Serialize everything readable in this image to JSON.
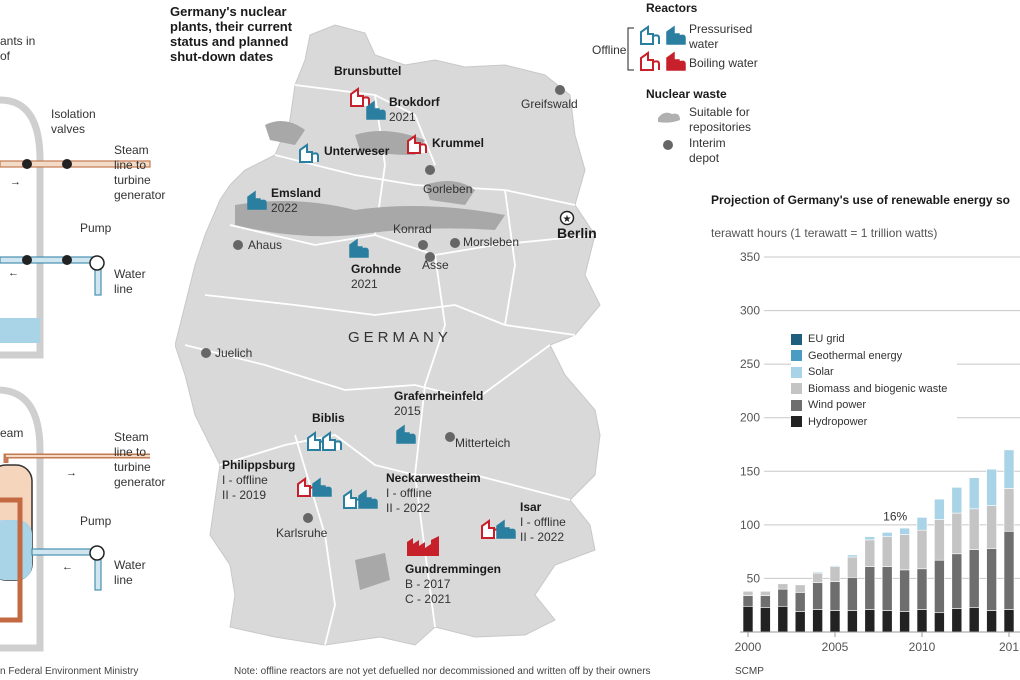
{
  "left_panel": {
    "header_text": [
      "ants in",
      "of"
    ],
    "isolation_valves": [
      "Isolation",
      "valves"
    ],
    "steam_line_top": [
      "Steam",
      "line to",
      "turbine",
      "generator"
    ],
    "pump_top": "Pump",
    "water_line_top": [
      "Water",
      "line"
    ],
    "steam_label_bottom": "eam",
    "steam_line_bottom": [
      "Steam",
      "line to",
      "turbine",
      "generator"
    ],
    "pump_bottom": "Pump",
    "water_line_bottom": [
      "Water",
      "line"
    ],
    "source": "n Federal Environment Ministry"
  },
  "map": {
    "title": [
      "Germany's nuclear",
      "plants, their current",
      "status and planned",
      "shut-down dates"
    ],
    "country_label": "GERMANY",
    "capital": "Berlin",
    "plants": [
      {
        "id": "brunsbuttel",
        "name": "Brunsbuttel",
        "detail": [],
        "type": "boiling",
        "status": "offline"
      },
      {
        "id": "brokdorf",
        "name": "Brokdorf",
        "detail": [
          "2021"
        ],
        "type": "pressurised",
        "status": "active"
      },
      {
        "id": "unterweser",
        "name": "Unterweser",
        "detail": [],
        "type": "pressurised",
        "status": "offline"
      },
      {
        "id": "krummel",
        "name": "Krummel",
        "detail": [],
        "type": "boiling",
        "status": "offline"
      },
      {
        "id": "emsland",
        "name": "Emsland",
        "detail": [
          "2022"
        ],
        "type": "pressurised",
        "status": "active"
      },
      {
        "id": "grohnde",
        "name": "Grohnde",
        "detail": [
          "2021"
        ],
        "type": "pressurised",
        "status": "active"
      },
      {
        "id": "grafenrheinfeld",
        "name": "Grafenrheinfeld",
        "detail": [
          "2015"
        ],
        "type": "pressurised",
        "status": "active"
      },
      {
        "id": "biblis",
        "name": "Biblis",
        "detail": [],
        "type": "pressurised",
        "status": "offline"
      },
      {
        "id": "philippsburg",
        "name": "Philippsburg",
        "detail": [
          "I - offline",
          "II - 2019"
        ],
        "type": "mixed",
        "status": "mixed"
      },
      {
        "id": "neckarwestheim",
        "name": "Neckarwestheim",
        "detail": [
          "I - offline",
          "II - 2022"
        ],
        "type": "pressurised",
        "status": "mixed"
      },
      {
        "id": "isar",
        "name": "Isar",
        "detail": [
          "I - offline",
          "II - 2022"
        ],
        "type": "mixed",
        "status": "mixed"
      },
      {
        "id": "gundremmingen",
        "name": "Gundremmingen",
        "detail": [
          "B - 2017",
          "C - 2021"
        ],
        "type": "boiling",
        "status": "active"
      }
    ],
    "depots": [
      "Greifswald",
      "Gorleben",
      "Konrad",
      "Asse",
      "Morsleben",
      "Ahaus",
      "Juelich",
      "Mitterteich",
      "Karlsruhe"
    ],
    "note": "Note: offline reactors are not yet defuelled nor decommissioned and written off by their owners"
  },
  "legend": {
    "reactors_title": "Reactors",
    "offline": "Offline",
    "pressurised": [
      "Pressurised",
      "water"
    ],
    "boiling": "Boiling water",
    "nuclear_waste_title": "Nuclear waste",
    "repositories": [
      "Suitable for",
      "repositories"
    ],
    "depot": [
      "Interim",
      "depot"
    ]
  },
  "colors": {
    "pressurised": "#2a7fa0",
    "boiling": "#c8202a",
    "map_fill": "#d9d9d9",
    "map_border": "#ffffff",
    "depot": "#666666",
    "repository": "#b0b0b0"
  },
  "chart_data": {
    "type": "bar",
    "stacked": true,
    "title": "Projection of Germany's use of renewable energy so",
    "ylabel": "terawatt hours (1 terawatt = 1 trillion watts)",
    "ylim": [
      0,
      350
    ],
    "yticks": [
      "350",
      "300",
      "250",
      "200",
      "150",
      "100",
      "50"
    ],
    "xticks": [
      "2000",
      "2005",
      "2010",
      "201"
    ],
    "x": [
      2000,
      2001,
      2002,
      2003,
      2004,
      2005,
      2006,
      2007,
      2008,
      2009,
      2010,
      2011,
      2012,
      2013,
      2014,
      2015
    ],
    "annotation": {
      "text": "16%",
      "x": 2008
    },
    "legend_placement": "upper-left",
    "series": [
      {
        "name": "Hydropower",
        "color": "#222222",
        "values": [
          24,
          23,
          24,
          19,
          21,
          20,
          20,
          21,
          20,
          19,
          21,
          18,
          22,
          23,
          20,
          21
        ]
      },
      {
        "name": "Wind power",
        "color": "#6e6e6e",
        "values": [
          10,
          11,
          16,
          18,
          25,
          27,
          31,
          40,
          41,
          39,
          38,
          49,
          51,
          54,
          58,
          73
        ]
      },
      {
        "name": "Biomass and biogenic waste",
        "color": "#c4c4c4",
        "values": [
          4,
          4,
          5,
          7,
          9,
          14,
          19,
          25,
          28,
          33,
          36,
          38,
          38,
          38,
          40,
          40
        ]
      },
      {
        "name": "Solar",
        "color": "#a9d3e6",
        "values": [
          0,
          0,
          0,
          0,
          1,
          1,
          2,
          3,
          4,
          6,
          12,
          19,
          24,
          29,
          34,
          36
        ]
      },
      {
        "name": "Geothermal energy",
        "color": "#4a9cc2",
        "values": [
          0,
          0,
          0,
          0,
          0,
          0,
          0,
          0,
          0,
          0,
          0,
          0,
          0,
          0,
          0,
          0
        ]
      },
      {
        "name": "EU grid",
        "color": "#1e5f7e",
        "values": [
          0,
          0,
          0,
          0,
          0,
          0,
          0,
          0,
          0,
          0,
          0,
          0,
          0,
          0,
          0,
          0
        ]
      }
    ],
    "legend_order": [
      "EU grid",
      "Geothermal energy",
      "Solar",
      "Biomass and biogenic waste",
      "Wind power",
      "Hydropower"
    ],
    "source": "SCMP"
  }
}
